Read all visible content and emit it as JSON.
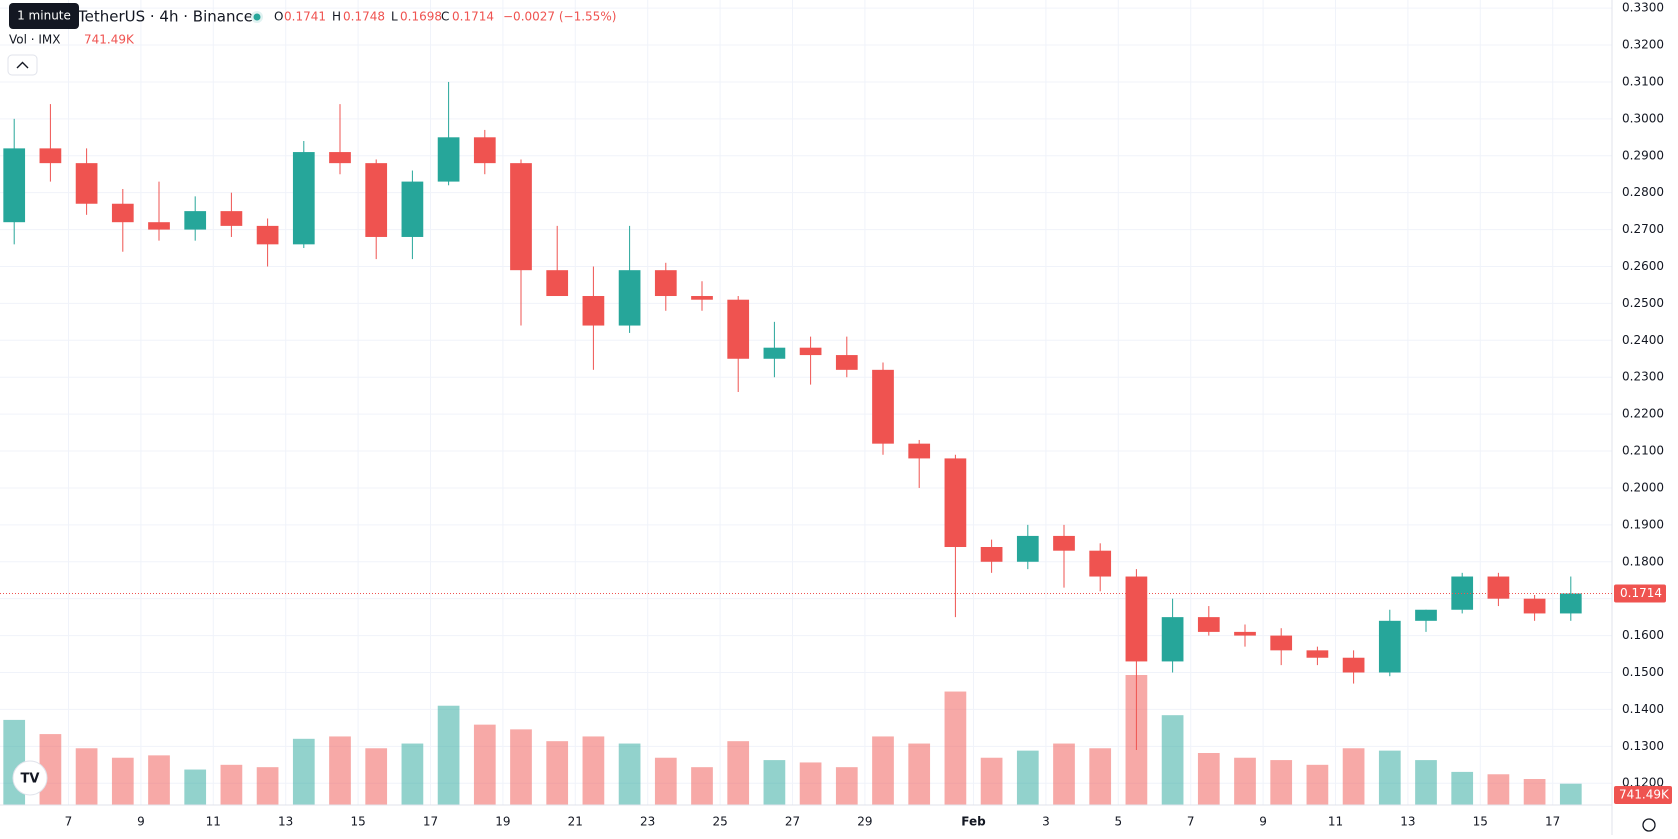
{
  "header": {
    "tooltip": "1 minute",
    "symbol": "TetherUS · 4h · Binance",
    "ohlc_labels": [
      "O",
      "H",
      "L",
      "C"
    ],
    "ohlc_values": [
      0.1741,
      0.1748,
      0.1698,
      0.1714
    ],
    "change": "−0.0027 (−1.55%)",
    "vol_title": "Vol · IMX",
    "vol_value": "741.49K"
  },
  "chart_data": {
    "type": "candlestick",
    "categories": [
      null,
      null,
      "7",
      null,
      "9",
      null,
      "11",
      null,
      "13",
      null,
      "15",
      null,
      "17",
      null,
      "19",
      null,
      "21",
      null,
      "23",
      null,
      "25",
      null,
      "27",
      null,
      "29",
      null,
      null,
      "Feb",
      null,
      "3",
      null,
      "5",
      null,
      "7",
      null,
      "9",
      null,
      "11",
      null,
      "13",
      null,
      "15",
      null,
      "17"
    ],
    "open": [
      0.272,
      0.292,
      0.288,
      0.277,
      0.272,
      0.27,
      0.275,
      0.271,
      0.266,
      0.291,
      0.288,
      0.268,
      0.283,
      0.295,
      0.288,
      0.259,
      0.252,
      0.244,
      0.259,
      0.252,
      0.251,
      0.235,
      0.238,
      0.236,
      0.232,
      0.212,
      0.208,
      0.184,
      0.18,
      0.187,
      0.183,
      0.176,
      0.153,
      0.165,
      0.161,
      0.16,
      0.156,
      0.154,
      0.15,
      0.164,
      0.167,
      0.176,
      0.17,
      0.166
    ],
    "high": [
      0.3,
      0.304,
      0.292,
      0.281,
      0.283,
      0.279,
      0.28,
      0.273,
      0.294,
      0.304,
      0.289,
      0.286,
      0.31,
      0.297,
      0.289,
      0.271,
      0.26,
      0.271,
      0.261,
      0.256,
      0.252,
      0.245,
      0.241,
      0.241,
      0.234,
      0.213,
      0.209,
      0.186,
      0.19,
      0.19,
      0.185,
      0.178,
      0.17,
      0.168,
      0.163,
      0.162,
      0.157,
      0.156,
      0.167,
      0.167,
      0.177,
      0.177,
      0.171,
      0.176
    ],
    "low": [
      0.266,
      0.283,
      0.274,
      0.264,
      0.267,
      0.267,
      0.268,
      0.26,
      0.265,
      0.285,
      0.262,
      0.262,
      0.282,
      0.285,
      0.244,
      0.252,
      0.232,
      0.242,
      0.248,
      0.248,
      0.226,
      0.23,
      0.228,
      0.23,
      0.209,
      0.2,
      0.165,
      0.177,
      0.178,
      0.173,
      0.172,
      0.129,
      0.15,
      0.16,
      0.157,
      0.152,
      0.152,
      0.147,
      0.149,
      0.161,
      0.166,
      0.168,
      0.164,
      0.164
    ],
    "close": [
      0.292,
      0.288,
      0.277,
      0.272,
      0.27,
      0.275,
      0.271,
      0.266,
      0.291,
      0.288,
      0.268,
      0.283,
      0.295,
      0.288,
      0.259,
      0.252,
      0.244,
      0.259,
      0.252,
      0.251,
      0.235,
      0.238,
      0.236,
      0.232,
      0.212,
      0.208,
      0.184,
      0.18,
      0.187,
      0.183,
      0.176,
      0.153,
      0.165,
      0.161,
      0.16,
      0.156,
      0.154,
      0.15,
      0.164,
      0.167,
      0.176,
      0.17,
      0.166,
      0.1714
    ],
    "volume": [
      3600,
      3000,
      2400,
      2000,
      2100,
      1500,
      1700,
      1600,
      2800,
      2900,
      2400,
      2600,
      4200,
      3400,
      3200,
      2700,
      2900,
      2600,
      2000,
      1600,
      2700,
      1900,
      1800,
      1600,
      2900,
      2600,
      4800,
      2000,
      2300,
      2600,
      2400,
      5500,
      3800,
      2200,
      2000,
      1900,
      1700,
      2400,
      2300,
      1900,
      1400,
      1300,
      1100,
      900
    ],
    "up_color": "#26a69a",
    "down_color": "#ef5350",
    "ylim": [
      0.1141,
      0.3322
    ],
    "yticks": [
      {
        "value": 0.12,
        "label": "0.1200"
      },
      {
        "value": 0.13,
        "label": "0.1300"
      },
      {
        "value": 0.14,
        "label": "0.1400"
      },
      {
        "value": 0.15,
        "label": "0.1500"
      },
      {
        "value": 0.16,
        "label": "0.1600"
      },
      {
        "value": 0.17,
        "label": "0.1700"
      },
      {
        "value": 0.18,
        "label": "0.1800"
      },
      {
        "value": 0.19,
        "label": "0.1900"
      },
      {
        "value": 0.2,
        "label": "0.2000"
      },
      {
        "value": 0.21,
        "label": "0.2100"
      },
      {
        "value": 0.22,
        "label": "0.2200"
      },
      {
        "value": 0.23,
        "label": "0.2300"
      },
      {
        "value": 0.24,
        "label": "0.2400"
      },
      {
        "value": 0.25,
        "label": "0.2500"
      },
      {
        "value": 0.26,
        "label": "0.2600"
      },
      {
        "value": 0.27,
        "label": "0.2700"
      },
      {
        "value": 0.28,
        "label": "0.2800"
      },
      {
        "value": 0.29,
        "label": "0.2900"
      },
      {
        "value": 0.3,
        "label": "0.3000"
      },
      {
        "value": 0.31,
        "label": "0.3100"
      },
      {
        "value": 0.32,
        "label": "0.3200"
      },
      {
        "value": 0.33,
        "label": "0.3300"
      }
    ],
    "last_price": 0.1714,
    "grid": true
  }
}
